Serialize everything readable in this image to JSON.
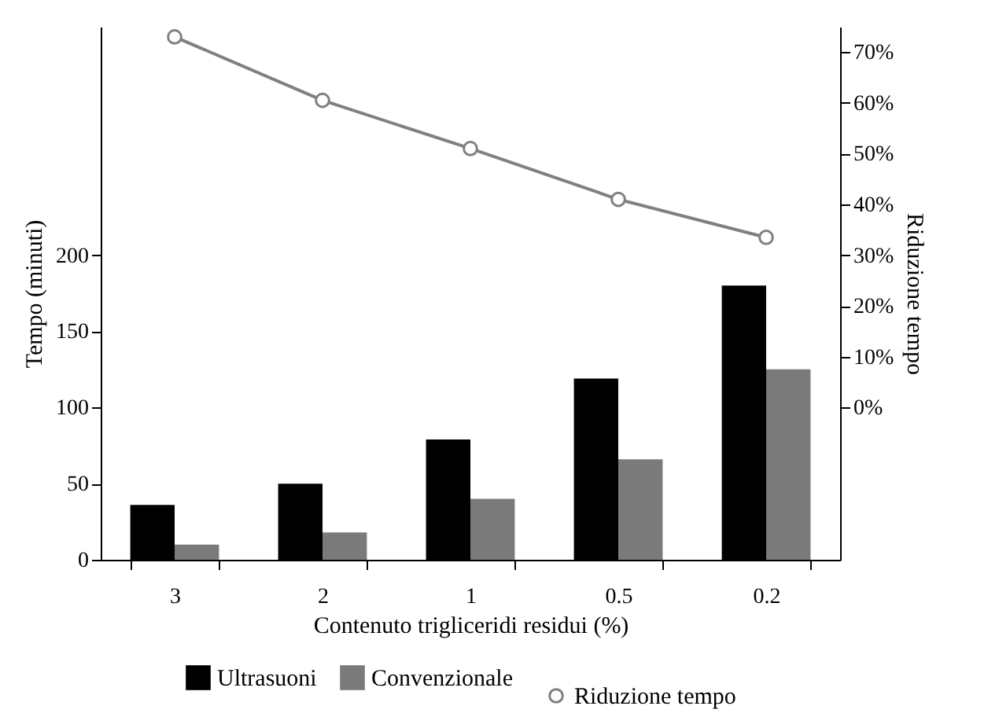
{
  "chart_data": {
    "type": "bar",
    "xlabel": "Contenuto trigliceridi residui (%)",
    "ylabel": "Tempo (minuti)",
    "y2label": "Riduzione tempo",
    "categories": [
      "3",
      "2",
      "1",
      "0.5",
      "0.2"
    ],
    "series": [
      {
        "name": "Ultrasuoni",
        "color": "#000000",
        "values": [
          36,
          50,
          79,
          119,
          180
        ]
      },
      {
        "name": "Convenzionale",
        "color": "#7a7a7a",
        "values": [
          10,
          18,
          40,
          66,
          125
        ]
      },
      {
        "name": "Riduzione tempo",
        "type": "line",
        "axis": "y2",
        "color": "#808080",
        "values": [
          73,
          60.5,
          51,
          41,
          33.5
        ]
      }
    ],
    "ylim": [
      0,
      350
    ],
    "yticks": [
      0,
      50,
      100,
      150,
      200
    ],
    "y2lim": [
      -30,
      75
    ],
    "y2ticks": [
      {
        "value": 0,
        "label": "0%"
      },
      {
        "value": 10,
        "label": "10%"
      },
      {
        "value": 20,
        "label": "20%"
      },
      {
        "value": 30,
        "label": "30%"
      },
      {
        "value": 40,
        "label": "40%"
      },
      {
        "value": 50,
        "label": "50%"
      },
      {
        "value": 60,
        "label": "60%"
      },
      {
        "value": 70,
        "label": "70%"
      }
    ],
    "legend": "bottom",
    "grid": false,
    "marker": "circle"
  }
}
